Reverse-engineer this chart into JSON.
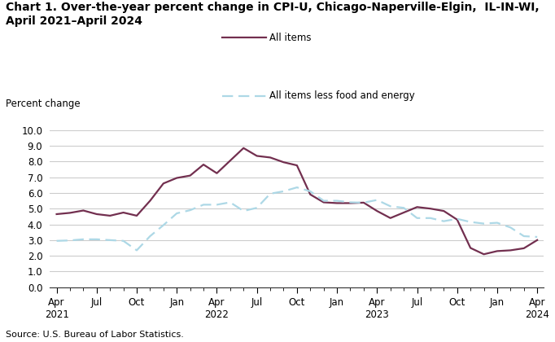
{
  "title_line1": "Chart 1. Over-the-year percent change in CPI-U, Chicago-Naperville-Elgin,  IL-IN-WI,",
  "title_line2": "April 2021–April 2024",
  "ylabel": "Percent change",
  "source": "Source: U.S. Bureau of Labor Statistics.",
  "ylim": [
    0.0,
    10.0
  ],
  "yticks": [
    0.0,
    1.0,
    2.0,
    3.0,
    4.0,
    5.0,
    6.0,
    7.0,
    8.0,
    9.0,
    10.0
  ],
  "x_labels": [
    "Apr\n2021",
    "Jul",
    "Oct",
    "Jan",
    "Apr\n2022",
    "Jul",
    "Oct",
    "Jan",
    "Apr\n2023",
    "Jul",
    "Oct",
    "Jan",
    "Apr\n2024"
  ],
  "x_tick_positions": [
    0,
    3,
    6,
    9,
    12,
    15,
    18,
    21,
    24,
    27,
    30,
    33,
    36
  ],
  "all_items": [
    4.65,
    4.73,
    4.88,
    4.65,
    4.55,
    4.75,
    4.55,
    5.5,
    6.6,
    6.95,
    7.1,
    7.8,
    7.25,
    8.05,
    8.85,
    8.35,
    8.25,
    7.95,
    7.75,
    5.9,
    5.4,
    5.35,
    5.35,
    5.38,
    4.85,
    4.4,
    4.75,
    5.1,
    5.0,
    4.85,
    4.3,
    2.5,
    2.1,
    2.3,
    2.35,
    2.48,
    3.0
  ],
  "all_items_less": [
    2.95,
    2.98,
    3.05,
    3.05,
    3.0,
    2.95,
    2.35,
    3.25,
    3.95,
    4.7,
    4.9,
    5.25,
    5.25,
    5.4,
    4.85,
    5.05,
    5.95,
    6.1,
    6.35,
    6.1,
    5.5,
    5.5,
    5.4,
    5.38,
    5.55,
    5.15,
    5.05,
    4.4,
    4.4,
    4.2,
    4.35,
    4.15,
    4.05,
    4.1,
    3.8,
    3.25,
    3.2
  ],
  "all_items_color": "#722F4F",
  "all_items_less_color": "#ADD8E6",
  "legend_label1": "All items",
  "legend_label2": "All items less food and energy",
  "background_color": "#ffffff",
  "title_fontsize": 10,
  "axis_fontsize": 8.5,
  "source_fontsize": 8
}
